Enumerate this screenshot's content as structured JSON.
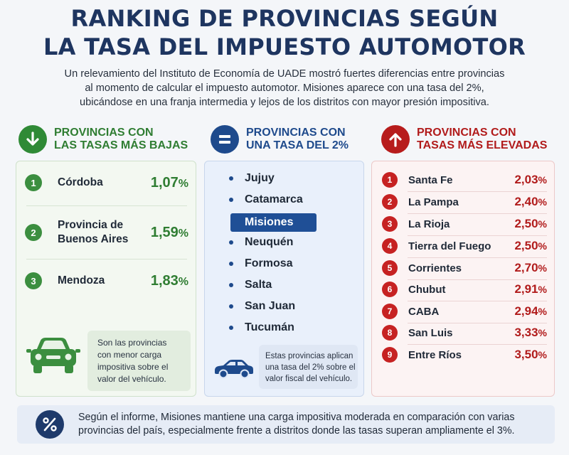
{
  "title": {
    "line1": "RANKING DE PROVINCIAS SEGÚN",
    "line2": "LA TASA DEL IMPUESTO AUTOMOTOR"
  },
  "intro": {
    "line1": "Un relevamiento del Instituto de Economía de UADE mostró fuertes diferencias entre provincias",
    "line2": "al momento de calcular el impuesto automotor. Misiones aparece con una tasa del 2%,",
    "line3": "ubicándose en una franja intermedia y lejos de los distritos con mayor presión impositiva."
  },
  "low": {
    "title_line1": "PROVINCIAS CON",
    "title_line2": "LAS TASAS MÁS BAJAS",
    "icon": "arrow-down-icon",
    "accent": "#2f7d32",
    "items": [
      {
        "rank": "1",
        "name_line1": "Córdoba",
        "name_line2": "",
        "value": "1,07",
        "unit": "%"
      },
      {
        "rank": "2",
        "name_line1": "Provincia de",
        "name_line2": "Buenos Aires",
        "value": "1,59",
        "unit": "%"
      },
      {
        "rank": "3",
        "name_line1": "Mendoza",
        "name_line2": "",
        "value": "1,83",
        "unit": "%"
      }
    ],
    "note": {
      "line1": "Son las provincias",
      "line2": "con menor carga",
      "line3": "impositiva sobre el",
      "line4": "valor del vehículo."
    },
    "note_icon": "car-front-icon"
  },
  "mid": {
    "title_line1": "PROVINCIAS CON",
    "title_line2": "UNA TASA DEL 2%",
    "icon": "equals-icon",
    "accent": "#1e4a8c",
    "items": [
      "Jujuy",
      "Catamarca",
      "Misiones",
      "Neuquén",
      "Formosa",
      "Salta",
      "San Juan",
      "Tucumán"
    ],
    "highlighted": "Misiones",
    "note": {
      "line1": "Estas provincias aplican",
      "line2": "una tasa del 2% sobre el",
      "line3": "valor fiscal del vehículo."
    },
    "note_icon": "car-side-icon"
  },
  "high": {
    "title_line1": "PROVINCIAS CON",
    "title_line2": "TASAS MÁS ELEVADAS",
    "icon": "arrow-up-icon",
    "accent": "#b11b1b",
    "items": [
      {
        "rank": "1",
        "name": "Santa Fe",
        "value": "2,03",
        "unit": "%"
      },
      {
        "rank": "2",
        "name": "La Pampa",
        "value": "2,40",
        "unit": "%"
      },
      {
        "rank": "3",
        "name": "La Rioja",
        "value": "2,50",
        "unit": "%"
      },
      {
        "rank": "4",
        "name": "Tierra del Fuego",
        "value": "2,50",
        "unit": "%"
      },
      {
        "rank": "5",
        "name": "Corrientes",
        "value": "2,70",
        "unit": "%"
      },
      {
        "rank": "6",
        "name": "Chubut",
        "value": "2,91",
        "unit": "%"
      },
      {
        "rank": "7",
        "name": "CABA",
        "value": "2,94",
        "unit": "%"
      },
      {
        "rank": "8",
        "name": "San Luis",
        "value": "3,33",
        "unit": "%"
      },
      {
        "rank": "9",
        "name": "Entre Ríos",
        "value": "3,50",
        "unit": "%"
      }
    ]
  },
  "footer": {
    "icon": "percent-icon",
    "line1": "Según el informe, Misiones mantiene una carga impositiva moderada en comparación con varias",
    "line2": "provincias del país, especialmente frente a distritos donde las tasas superan ampliamente el 3%."
  }
}
